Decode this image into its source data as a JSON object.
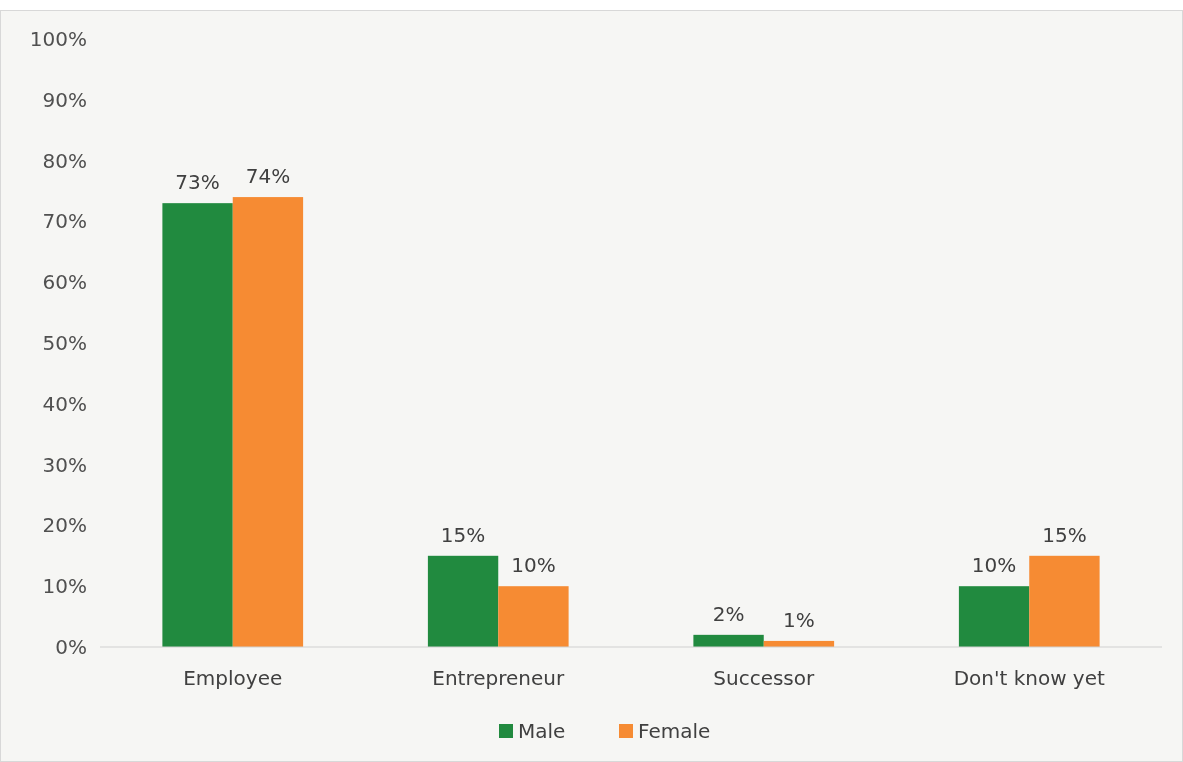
{
  "chart_data": {
    "type": "bar",
    "categories": [
      "Employee",
      "Entrepreneur",
      "Successor",
      "Don't know yet"
    ],
    "series": [
      {
        "name": "Male",
        "color": "#218a3f",
        "values": [
          73,
          15,
          2,
          10
        ],
        "value_labels": [
          "73%",
          "15%",
          "2%",
          "10%"
        ]
      },
      {
        "name": "Female",
        "color": "#f68b33",
        "values": [
          74,
          10,
          1,
          15
        ],
        "value_labels": [
          "74%",
          "10%",
          "1%",
          "15%"
        ]
      }
    ],
    "ylim": [
      0,
      100
    ],
    "yticks": [
      {
        "value": 0,
        "label": "0%"
      },
      {
        "value": 10,
        "label": "10%"
      },
      {
        "value": 20,
        "label": "20%"
      },
      {
        "value": 30,
        "label": "30%"
      },
      {
        "value": 40,
        "label": "40%"
      },
      {
        "value": 50,
        "label": "50%"
      },
      {
        "value": 60,
        "label": "60%"
      },
      {
        "value": 70,
        "label": "70%"
      },
      {
        "value": 80,
        "label": "80%"
      },
      {
        "value": 90,
        "label": "90%"
      },
      {
        "value": 100,
        "label": "100%"
      }
    ],
    "grid": false,
    "legend": "bottom"
  }
}
